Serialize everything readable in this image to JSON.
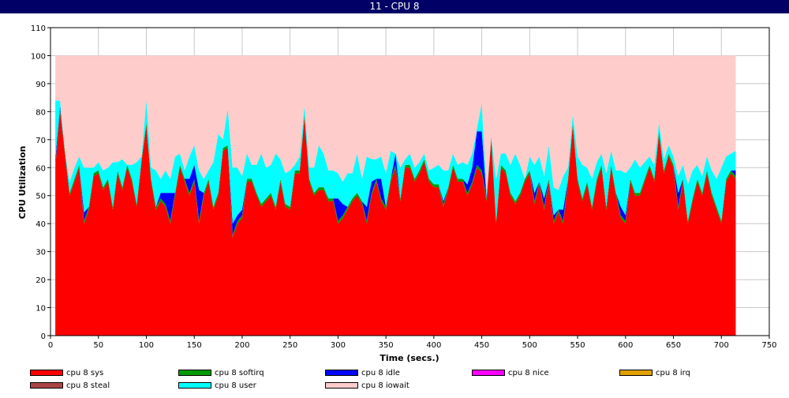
{
  "window": {
    "title": "11 - CPU 8"
  },
  "chart_data": {
    "type": "area",
    "stacked": true,
    "title": "11 - CPU 8",
    "xlabel": "Time (secs.)",
    "ylabel": "CPU Utilization",
    "xlim": [
      0,
      750
    ],
    "ylim": [
      0,
      110
    ],
    "xticks": [
      0,
      50,
      100,
      150,
      200,
      250,
      300,
      350,
      400,
      450,
      500,
      550,
      600,
      650,
      700,
      750
    ],
    "yticks": [
      0,
      10,
      20,
      30,
      40,
      50,
      60,
      70,
      80,
      90,
      100,
      110
    ],
    "grid": true,
    "legend_position": "bottom",
    "x": [
      5,
      10,
      15,
      20,
      25,
      30,
      35,
      40,
      45,
      50,
      55,
      60,
      65,
      70,
      75,
      80,
      85,
      90,
      95,
      100,
      105,
      110,
      115,
      120,
      125,
      130,
      135,
      140,
      145,
      150,
      155,
      160,
      165,
      170,
      175,
      180,
      185,
      190,
      195,
      200,
      205,
      210,
      215,
      220,
      225,
      230,
      235,
      240,
      245,
      250,
      255,
      260,
      265,
      270,
      275,
      280,
      285,
      290,
      295,
      300,
      305,
      310,
      315,
      320,
      325,
      330,
      335,
      340,
      345,
      350,
      355,
      360,
      365,
      370,
      375,
      380,
      385,
      390,
      395,
      400,
      405,
      410,
      415,
      420,
      425,
      430,
      435,
      440,
      445,
      450,
      455,
      460,
      465,
      470,
      475,
      480,
      485,
      490,
      495,
      500,
      505,
      510,
      515,
      520,
      525,
      530,
      535,
      540,
      545,
      550,
      555,
      560,
      565,
      570,
      575,
      580,
      585,
      590,
      595,
      600,
      605,
      610,
      615,
      620,
      625,
      630,
      635,
      640,
      645,
      650,
      655,
      660,
      665,
      670,
      675,
      680,
      685,
      690,
      695,
      700,
      705,
      710,
      715
    ],
    "series": [
      {
        "name": "cpu 8 sys",
        "color": "#ff0000",
        "values": [
          60,
          80,
          65,
          50,
          55,
          60,
          40,
          45,
          57,
          58,
          52,
          55,
          45,
          58,
          52,
          60,
          55,
          46,
          62,
          75,
          55,
          45,
          48,
          46,
          40,
          50,
          60,
          55,
          50,
          55,
          40,
          50,
          55,
          45,
          50,
          66,
          67,
          35,
          40,
          42,
          55,
          55,
          50,
          46,
          48,
          50,
          45,
          55,
          46,
          45,
          58,
          58,
          78,
          55,
          50,
          52,
          52,
          48,
          48,
          40,
          42,
          45,
          48,
          50,
          47,
          40,
          50,
          55,
          48,
          45,
          55,
          60,
          48,
          60,
          60,
          55,
          58,
          62,
          55,
          53,
          53,
          46,
          52,
          60,
          55,
          55,
          50,
          54,
          60,
          58,
          48,
          70,
          40,
          60,
          58,
          50,
          47,
          50,
          55,
          58,
          47,
          54,
          45,
          55,
          40,
          44,
          40,
          55,
          75,
          55,
          48,
          54,
          45,
          55,
          60,
          45,
          60,
          50,
          42,
          40,
          55,
          50,
          50,
          55,
          60,
          55,
          72,
          58,
          64,
          60,
          45,
          55,
          40,
          48,
          55,
          50,
          58,
          50,
          45,
          40,
          55,
          58,
          56
        ]
      },
      {
        "name": "cpu 8 softirq",
        "color": "#009900",
        "values": [
          1,
          1,
          1,
          1,
          1,
          1,
          1,
          1,
          1,
          1,
          1,
          1,
          1,
          1,
          1,
          1,
          1,
          1,
          1,
          1,
          1,
          1,
          1,
          1,
          1,
          1,
          1,
          1,
          1,
          1,
          1,
          1,
          1,
          1,
          1,
          1,
          1,
          1,
          1,
          1,
          1,
          1,
          1,
          1,
          1,
          1,
          1,
          1,
          1,
          1,
          1,
          1,
          1,
          1,
          1,
          1,
          1,
          1,
          1,
          1,
          1,
          1,
          1,
          1,
          1,
          1,
          1,
          1,
          1,
          1,
          1,
          1,
          1,
          1,
          1,
          1,
          1,
          1,
          1,
          1,
          1,
          1,
          1,
          1,
          1,
          1,
          1,
          1,
          1,
          1,
          1,
          1,
          1,
          1,
          1,
          1,
          1,
          1,
          1,
          1,
          1,
          1,
          1,
          1,
          1,
          1,
          1,
          1,
          1,
          1,
          1,
          1,
          1,
          1,
          1,
          1,
          1,
          1,
          1,
          1,
          1,
          1,
          1,
          1,
          1,
          1,
          1,
          1,
          1,
          1,
          1,
          1,
          1,
          1,
          1,
          1,
          1,
          1,
          1,
          1,
          1,
          1,
          1
        ]
      },
      {
        "name": "cpu 8 idle",
        "color": "#0000ff",
        "values": [
          2,
          1,
          0,
          0,
          0,
          0,
          3,
          0,
          0,
          0,
          0,
          0,
          0,
          0,
          0,
          0,
          0,
          0,
          0,
          0,
          0,
          0,
          2,
          4,
          10,
          0,
          0,
          0,
          5,
          5,
          11,
          0,
          0,
          0,
          0,
          0,
          0,
          4,
          2,
          2,
          0,
          0,
          0,
          0,
          0,
          0,
          0,
          0,
          0,
          0,
          0,
          0,
          0,
          0,
          0,
          0,
          0,
          0,
          0,
          8,
          4,
          0,
          0,
          0,
          0,
          5,
          4,
          0,
          7,
          0,
          0,
          4,
          0,
          0,
          0,
          0,
          0,
          0,
          0,
          0,
          0,
          1,
          0,
          0,
          0,
          0,
          3,
          5,
          12,
          14,
          0,
          0,
          0,
          0,
          0,
          0,
          0,
          0,
          0,
          0,
          3,
          0,
          3,
          0,
          2,
          0,
          4,
          0,
          0,
          0,
          0,
          0,
          0,
          0,
          0,
          0,
          0,
          0,
          3,
          2,
          0,
          0,
          0,
          0,
          0,
          0,
          0,
          0,
          0,
          0,
          5,
          0,
          0,
          0,
          0,
          0,
          0,
          0,
          0,
          0,
          0,
          0,
          2
        ]
      },
      {
        "name": "cpu 8 nice",
        "color": "#ff00ff",
        "values": [
          0,
          0,
          0,
          0,
          0,
          0,
          0,
          0,
          0,
          0,
          0,
          0,
          0,
          0,
          0,
          0,
          0,
          0,
          0,
          0,
          0,
          0,
          0,
          0,
          0,
          0,
          0,
          0,
          0,
          0,
          0,
          0,
          0,
          0,
          0,
          0,
          0,
          0,
          0,
          0,
          0,
          0,
          0,
          0,
          0,
          0,
          0,
          0,
          0,
          0,
          0,
          0,
          0,
          0,
          0,
          0,
          0,
          0,
          0,
          0,
          0,
          0,
          0,
          0,
          0,
          0,
          0,
          0,
          0,
          0,
          0,
          0,
          0,
          0,
          0,
          0,
          0,
          0,
          0,
          0,
          0,
          0,
          0,
          0,
          0,
          0,
          0,
          0,
          0,
          0,
          0,
          0,
          0,
          0,
          0,
          0,
          0,
          0,
          0,
          0,
          0,
          0,
          0,
          0,
          0,
          0,
          0,
          0,
          0,
          0,
          0,
          0,
          0,
          0,
          0,
          0,
          0,
          0,
          0,
          0,
          0,
          0,
          0,
          0,
          0,
          0,
          0,
          0,
          0,
          0,
          0,
          0,
          0,
          0,
          0,
          0,
          0,
          0,
          0,
          0,
          0,
          0,
          0
        ]
      },
      {
        "name": "cpu 8 irq",
        "color": "#e0a000",
        "values": [
          0,
          0,
          0,
          0,
          0,
          0,
          0,
          0,
          0,
          0,
          0,
          0,
          0,
          0,
          0,
          0,
          0,
          0,
          0,
          0,
          0,
          0,
          0,
          0,
          0,
          0,
          0,
          0,
          0,
          0,
          0,
          0,
          0,
          0,
          0,
          0,
          0,
          0,
          0,
          0,
          0,
          0,
          0,
          0,
          0,
          0,
          0,
          0,
          0,
          0,
          0,
          0,
          0,
          0,
          0,
          0,
          0,
          0,
          0,
          0,
          0,
          0,
          0,
          0,
          0,
          0,
          0,
          0,
          0,
          0,
          0,
          0,
          0,
          0,
          0,
          0,
          0,
          0,
          0,
          0,
          0,
          0,
          0,
          0,
          0,
          0,
          0,
          0,
          0,
          0,
          0,
          0,
          0,
          0,
          0,
          0,
          0,
          0,
          0,
          0,
          0,
          0,
          0,
          0,
          0,
          0,
          0,
          0,
          0,
          0,
          0,
          0,
          0,
          0,
          0,
          0,
          0,
          0,
          0,
          0,
          0,
          0,
          0,
          0,
          0,
          0,
          0,
          0,
          0,
          0,
          0,
          0,
          0,
          0,
          0,
          0,
          0,
          0,
          0,
          0,
          0,
          0,
          0
        ]
      },
      {
        "name": "cpu 8 steal",
        "color": "#aa4444",
        "values": [
          0,
          0,
          0,
          0,
          0,
          0,
          0,
          0,
          0,
          0,
          0,
          0,
          0,
          0,
          0,
          0,
          0,
          0,
          0,
          0,
          0,
          0,
          0,
          0,
          0,
          0,
          0,
          0,
          0,
          0,
          0,
          0,
          0,
          0,
          0,
          0,
          0,
          0,
          0,
          0,
          0,
          0,
          0,
          0,
          0,
          0,
          0,
          0,
          0,
          0,
          0,
          0,
          0,
          0,
          0,
          0,
          0,
          0,
          0,
          0,
          0,
          0,
          0,
          0,
          0,
          0,
          0,
          0,
          0,
          0,
          0,
          0,
          0,
          0,
          0,
          0,
          0,
          0,
          0,
          0,
          0,
          0,
          0,
          0,
          0,
          0,
          0,
          0,
          0,
          0,
          0,
          0,
          0,
          0,
          0,
          0,
          0,
          0,
          0,
          0,
          0,
          0,
          0,
          0,
          0,
          0,
          0,
          0,
          0,
          0,
          0,
          0,
          0,
          0,
          0,
          0,
          0,
          0,
          0,
          0,
          0,
          0,
          0,
          0,
          0,
          0,
          0,
          0,
          0,
          0,
          0,
          0,
          0,
          0,
          0,
          0,
          0,
          0,
          0,
          0,
          0,
          0,
          0
        ]
      },
      {
        "name": "cpu 8 user",
        "color": "#00ffff",
        "values": [
          21,
          2,
          0,
          4,
          4,
          3,
          16,
          14,
          2,
          3,
          6,
          4,
          16,
          3,
          10,
          0,
          5,
          15,
          1,
          8,
          4,
          13,
          5,
          8,
          5,
          13,
          4,
          3,
          8,
          7,
          7,
          5,
          3,
          16,
          21,
          3,
          13,
          20,
          17,
          12,
          9,
          5,
          10,
          18,
          11,
          10,
          19,
          7,
          11,
          13,
          2,
          5,
          3,
          4,
          9,
          15,
          12,
          10,
          10,
          9,
          8,
          12,
          9,
          14,
          8,
          18,
          8,
          7,
          8,
          12,
          10,
          0,
          11,
          2,
          4,
          4,
          3,
          2,
          3,
          6,
          7,
          11,
          6,
          4,
          5,
          6,
          7,
          5,
          1,
          10,
          2,
          0,
          15,
          4,
          6,
          10,
          17,
          10,
          0,
          5,
          10,
          9,
          8,
          12,
          10,
          7,
          12,
          4,
          3,
          8,
          12,
          5,
          10,
          6,
          4,
          12,
          5,
          8,
          13,
          15,
          4,
          12,
          9,
          6,
          3,
          5,
          3,
          4,
          3,
          3,
          6,
          5,
          13,
          10,
          5,
          6,
          5,
          8,
          10,
          19,
          8,
          6,
          7
        ]
      },
      {
        "name": "cpu 8 iowait",
        "color": "#ffcccc",
        "values": [
          16,
          16,
          34,
          45,
          40,
          36,
          40,
          40,
          40,
          38,
          41,
          40,
          38,
          38,
          37,
          39,
          39,
          38,
          36,
          16,
          40,
          41,
          44,
          41,
          44,
          36,
          35,
          41,
          36,
          32,
          41,
          44,
          41,
          38,
          28,
          30,
          19,
          40,
          40,
          43,
          35,
          39,
          39,
          35,
          40,
          39,
          35,
          37,
          42,
          41,
          39,
          36,
          18,
          40,
          40,
          32,
          35,
          41,
          41,
          42,
          45,
          42,
          42,
          35,
          44,
          36,
          37,
          37,
          36,
          42,
          34,
          35,
          40,
          37,
          35,
          40,
          38,
          35,
          41,
          40,
          39,
          41,
          41,
          35,
          39,
          38,
          39,
          35,
          26,
          17,
          49,
          29,
          44,
          35,
          35,
          39,
          35,
          39,
          44,
          36,
          39,
          36,
          43,
          32,
          47,
          48,
          43,
          40,
          21,
          36,
          39,
          40,
          44,
          38,
          35,
          42,
          34,
          41,
          41,
          42,
          40,
          37,
          40,
          38,
          36,
          39,
          24,
          37,
          32,
          36,
          43,
          39,
          46,
          41,
          39,
          43,
          36,
          41,
          44,
          40,
          36,
          35,
          34
        ]
      }
    ]
  }
}
